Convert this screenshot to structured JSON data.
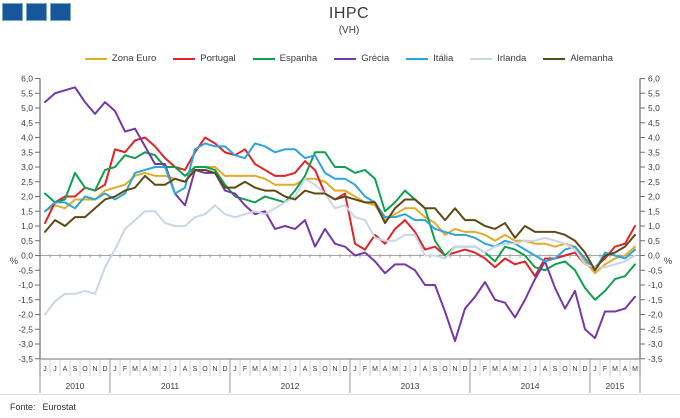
{
  "logo": {
    "square_color": "#15589A",
    "square_border": "#7FA5C6",
    "square_count": 3
  },
  "header": {
    "title": "IHPC",
    "subtitle": "(VH)"
  },
  "footer": {
    "source_label": "Fonte:",
    "source_value": "Eurostat"
  },
  "chart_data": {
    "type": "line",
    "title": "IHPC",
    "subtitle": "(VH)",
    "ylabel": "%",
    "ylim": [
      -3.5,
      6.0
    ],
    "ytick_step": 0.5,
    "grid": "zero-line-only",
    "legend_position": "top",
    "x_months": [
      "J",
      "J",
      "A",
      "S",
      "O",
      "N",
      "D",
      "J",
      "F",
      "M",
      "A",
      "M",
      "J",
      "J",
      "A",
      "S",
      "O",
      "N",
      "D",
      "J",
      "F",
      "M",
      "A",
      "M",
      "J",
      "J",
      "A",
      "S",
      "O",
      "N",
      "D",
      "J",
      "F",
      "M",
      "A",
      "M",
      "J",
      "J",
      "A",
      "S",
      "O",
      "N",
      "D",
      "J",
      "F",
      "M",
      "A",
      "M",
      "J",
      "J",
      "A",
      "S",
      "O",
      "N",
      "D",
      "J",
      "F",
      "M",
      "A",
      "M"
    ],
    "x_years": [
      {
        "label": "2010",
        "months": 7
      },
      {
        "label": "2011",
        "months": 12
      },
      {
        "label": "2012",
        "months": 12
      },
      {
        "label": "2013",
        "months": 12
      },
      {
        "label": "2014",
        "months": 12
      },
      {
        "label": "2015",
        "months": 5
      }
    ],
    "series": [
      {
        "name": "Zona Euro",
        "color": "#E2AC28",
        "values": [
          1.5,
          1.7,
          1.6,
          1.9,
          1.9,
          1.9,
          2.2,
          2.3,
          2.4,
          2.7,
          2.8,
          2.7,
          2.7,
          2.6,
          2.5,
          3.0,
          3.0,
          3.0,
          2.7,
          2.7,
          2.7,
          2.7,
          2.6,
          2.4,
          2.4,
          2.4,
          2.6,
          2.6,
          2.5,
          2.2,
          2.2,
          2.0,
          1.8,
          1.7,
          1.2,
          1.4,
          1.6,
          1.6,
          1.3,
          1.1,
          0.7,
          0.9,
          0.8,
          0.8,
          0.7,
          0.5,
          0.7,
          0.5,
          0.5,
          0.4,
          0.4,
          0.3,
          0.4,
          0.3,
          -0.2,
          -0.6,
          -0.3,
          -0.1,
          0.0,
          0.3
        ]
      },
      {
        "name": "Portugal",
        "color": "#E02426",
        "values": [
          1.1,
          1.8,
          2.0,
          2.0,
          2.3,
          2.2,
          2.4,
          3.6,
          3.5,
          3.9,
          4.0,
          3.7,
          3.3,
          3.0,
          2.9,
          3.5,
          4.0,
          3.8,
          3.5,
          3.4,
          3.6,
          3.1,
          2.9,
          2.7,
          2.7,
          2.8,
          3.2,
          2.9,
          2.1,
          1.9,
          2.1,
          0.4,
          0.2,
          0.7,
          0.4,
          0.9,
          1.2,
          0.8,
          0.2,
          0.3,
          0.0,
          0.1,
          0.2,
          0.1,
          -0.1,
          -0.4,
          -0.1,
          -0.3,
          -0.2,
          -0.7,
          -0.1,
          -0.1,
          0.0,
          0.1,
          -0.3,
          -0.4,
          -0.1,
          0.3,
          0.4,
          1.0
        ]
      },
      {
        "name": "Espanha",
        "color": "#0FA14F",
        "values": [
          2.1,
          1.8,
          1.9,
          2.8,
          2.3,
          2.2,
          2.9,
          3.0,
          3.4,
          3.3,
          3.5,
          3.4,
          3.0,
          3.0,
          2.7,
          3.0,
          3.0,
          2.9,
          2.4,
          2.0,
          1.9,
          1.8,
          2.0,
          1.9,
          1.8,
          2.2,
          2.7,
          3.5,
          3.5,
          3.0,
          3.0,
          2.8,
          2.9,
          2.6,
          1.5,
          1.8,
          2.2,
          1.9,
          1.6,
          0.5,
          0.0,
          0.3,
          0.3,
          0.3,
          0.1,
          -0.2,
          0.3,
          0.2,
          0.0,
          -0.4,
          -0.5,
          -0.3,
          -0.2,
          -0.5,
          -1.1,
          -1.5,
          -1.2,
          -0.8,
          -0.7,
          -0.3
        ]
      },
      {
        "name": "Grécia",
        "color": "#7638A8",
        "values": [
          5.2,
          5.5,
          5.6,
          5.7,
          5.2,
          4.8,
          5.2,
          4.9,
          4.2,
          4.3,
          3.7,
          3.1,
          3.1,
          2.1,
          1.7,
          2.9,
          2.8,
          2.8,
          2.2,
          2.1,
          1.7,
          1.4,
          1.5,
          0.9,
          1.0,
          0.9,
          1.2,
          0.3,
          0.9,
          0.4,
          0.3,
          0.0,
          0.1,
          -0.2,
          -0.6,
          -0.3,
          -0.3,
          -0.5,
          -1.0,
          -1.0,
          -1.9,
          -2.9,
          -1.8,
          -1.4,
          -0.9,
          -1.5,
          -1.6,
          -2.1,
          -1.5,
          -0.8,
          -0.2,
          -1.1,
          -1.8,
          -1.2,
          -2.5,
          -2.8,
          -1.9,
          -1.9,
          -1.8,
          -1.4
        ]
      },
      {
        "name": "Itália",
        "color": "#2FA3DC",
        "values": [
          1.5,
          1.8,
          1.8,
          1.6,
          2.0,
          1.9,
          2.1,
          1.9,
          2.1,
          2.8,
          2.9,
          3.0,
          3.0,
          2.1,
          2.3,
          3.6,
          3.8,
          3.7,
          3.7,
          3.4,
          3.3,
          3.8,
          3.7,
          3.5,
          3.6,
          3.6,
          3.3,
          3.4,
          2.8,
          2.6,
          2.6,
          2.4,
          2.0,
          1.8,
          1.3,
          1.3,
          1.4,
          1.2,
          1.2,
          0.9,
          0.8,
          0.7,
          0.7,
          0.6,
          0.4,
          0.3,
          0.5,
          0.4,
          0.2,
          0.0,
          -0.2,
          -0.1,
          0.2,
          0.3,
          -0.1,
          -0.5,
          0.1,
          0.0,
          -0.1,
          0.2
        ]
      },
      {
        "name": "Irlanda",
        "color": "#C9D6E7",
        "values": [
          -2.0,
          -1.55,
          -1.3,
          -1.3,
          -1.2,
          -1.3,
          -0.4,
          0.2,
          0.9,
          1.2,
          1.5,
          1.5,
          1.1,
          1.0,
          1.0,
          1.3,
          1.4,
          1.7,
          1.4,
          1.3,
          1.4,
          1.5,
          1.4,
          1.6,
          1.8,
          2.0,
          2.6,
          2.4,
          2.1,
          1.6,
          1.7,
          1.3,
          1.2,
          0.6,
          0.5,
          0.5,
          0.7,
          0.7,
          0.0,
          0.0,
          -0.1,
          0.3,
          0.3,
          0.3,
          0.1,
          0.3,
          0.4,
          0.4,
          0.5,
          0.5,
          0.6,
          0.5,
          0.4,
          0.2,
          -0.3,
          -0.4,
          -0.4,
          -0.3,
          -0.2,
          0.0
        ]
      },
      {
        "name": "Alemanha",
        "color": "#5E4A15",
        "values": [
          0.8,
          1.2,
          1.0,
          1.3,
          1.3,
          1.6,
          1.9,
          2.0,
          2.2,
          2.3,
          2.7,
          2.4,
          2.4,
          2.6,
          2.5,
          2.9,
          2.9,
          2.8,
          2.3,
          2.3,
          2.5,
          2.3,
          2.2,
          2.2,
          2.0,
          1.9,
          2.2,
          2.1,
          2.1,
          1.9,
          2.0,
          1.9,
          1.8,
          1.8,
          1.1,
          1.6,
          1.9,
          1.9,
          1.6,
          1.6,
          1.2,
          1.6,
          1.2,
          1.2,
          1.0,
          0.9,
          1.1,
          0.6,
          1.0,
          0.8,
          0.8,
          0.8,
          0.7,
          0.5,
          0.1,
          -0.5,
          0.0,
          0.1,
          0.3,
          0.7
        ]
      }
    ]
  }
}
